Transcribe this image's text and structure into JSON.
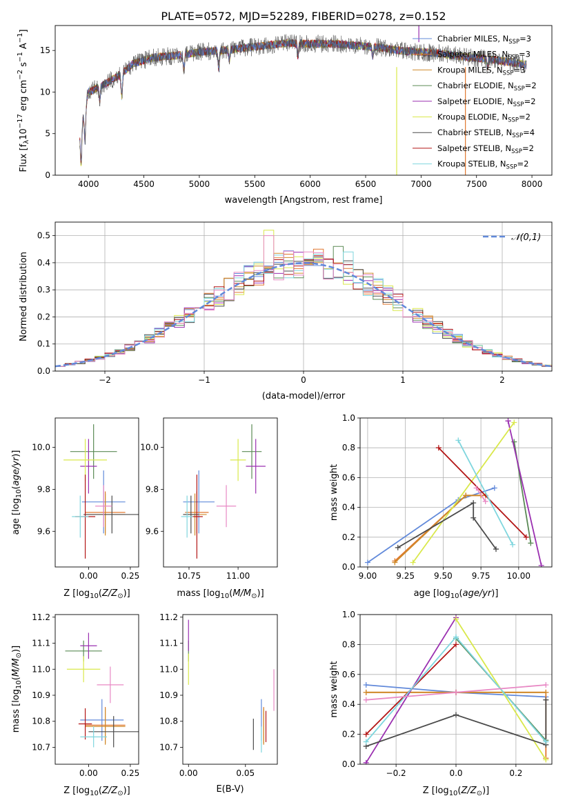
{
  "title": "PLATE=0572, MJD=52289, FIBERID=0278, z=0.152",
  "colors": [
    "#6189da",
    "#e0772f",
    "#cf8a2a",
    "#5a8a55",
    "#9a2fb0",
    "#d9e84a",
    "#4a4a4a",
    "#b21414",
    "#7fd6de",
    "#e888c4"
  ],
  "chart_data": [
    {
      "id": "spectrum",
      "type": "line",
      "xlabel": "wavelength [Angstrom, rest frame]",
      "ylabel": "Flux [f_λ 10^-17 erg cm^-2 s^-1 A^-1]",
      "xlim": [
        3700,
        8180
      ],
      "ylim": [
        0,
        18
      ],
      "xticks": [
        4000,
        4500,
        5000,
        5500,
        6000,
        6500,
        7000,
        7500,
        8000
      ],
      "yticks": [
        0,
        5,
        10,
        15
      ],
      "legend_position": "upper right",
      "series": [
        {
          "name": "Chabrier MILES, N_SSP=3",
          "color": "#6189da"
        },
        {
          "name": "Salpeter MILES, N_SSP=3",
          "color": "#e0772f"
        },
        {
          "name": "Kroupa MILES, N_SSP=3",
          "color": "#cf8a2a"
        },
        {
          "name": "Chabrier ELODIE, N_SSP=2",
          "color": "#5a8a55"
        },
        {
          "name": "Salpeter ELODIE, N_SSP=2",
          "color": "#9a2fb0"
        },
        {
          "name": "Kroupa ELODIE, N_SSP=2",
          "color": "#d9e84a"
        },
        {
          "name": "Chabrier STELIB, N_SSP=4",
          "color": "#4a4a4a"
        },
        {
          "name": "Salpeter STELIB, N_SSP=2",
          "color": "#b21414"
        },
        {
          "name": "Kroupa STELIB, N_SSP=2",
          "color": "#7fd6de"
        }
      ],
      "continuum": {
        "x": [
          3920,
          3960,
          4000,
          4100,
          4200,
          4300,
          4400,
          4600,
          4800,
          5000,
          5200,
          5400,
          5600,
          5800,
          6000,
          6200,
          6400,
          6600,
          6800,
          7000,
          7200,
          7400,
          7600,
          7800,
          7950
        ],
        "y": [
          5.0,
          7.5,
          10.0,
          10.6,
          11.4,
          12.2,
          13.4,
          14.2,
          14.4,
          14.8,
          15.0,
          15.3,
          15.6,
          15.9,
          15.8,
          15.8,
          15.6,
          15.4,
          15.0,
          14.8,
          14.6,
          14.2,
          14.0,
          13.6,
          13.3
        ]
      },
      "features": [
        {
          "wavelength": 6780,
          "color": "#d9e84a",
          "from": 13.0,
          "to": 0
        },
        {
          "wavelength": 7400,
          "color": "#e0772f",
          "from": 13.0,
          "to": 0
        },
        {
          "wavelength": 6980,
          "color": "#9a2fb0",
          "from": 16.0,
          "to": 18.0
        }
      ]
    },
    {
      "id": "residuals",
      "type": "histogram",
      "xlabel": "(data-model)/error",
      "ylabel": "Normed distribution",
      "xlim": [
        -2.5,
        2.5
      ],
      "ylim": [
        0,
        0.55
      ],
      "xticks": [
        -2,
        -1,
        0,
        1,
        2
      ],
      "yticks": [
        0.0,
        0.1,
        0.2,
        0.3,
        0.4,
        0.5
      ],
      "bin_width": 0.1,
      "reference_curve": {
        "name": "𝒩(0,1)",
        "color": "#6189da",
        "style": "dashed"
      },
      "outlier_bins": [
        {
          "center": -0.35,
          "value": 0.52,
          "color": "#d9e84a"
        },
        {
          "center": -0.35,
          "value": 0.5,
          "color": "#e888c4"
        },
        {
          "center": 0.15,
          "value": 0.45,
          "color": "#e0772f"
        },
        {
          "center": 0.35,
          "value": 0.46,
          "color": "#5a8a55"
        },
        {
          "center": 0.45,
          "value": 0.44,
          "color": "#7fd6de"
        },
        {
          "center": 0.05,
          "value": 0.44,
          "color": "#e888c4"
        }
      ]
    },
    {
      "id": "age_vs_Z",
      "type": "scatter",
      "xlabel": "Z [log10(Z/Z⊙)]",
      "ylabel": "age [log10(age/yr)]",
      "xlim": [
        -0.2,
        0.3
      ],
      "ylim": [
        9.43,
        10.14
      ],
      "xticks": [
        0.0,
        0.25
      ],
      "yticks": [
        9.6,
        9.8,
        10.0
      ],
      "points": [
        {
          "x": 0.09,
          "y": 9.74,
          "xerr": 0.13,
          "yerr": 0.15,
          "color": "#6189da"
        },
        {
          "x": 0.1,
          "y": 9.69,
          "xerr": 0.12,
          "yerr": 0.1,
          "color": "#e0772f"
        },
        {
          "x": 0.1,
          "y": 9.68,
          "xerr": 0.12,
          "yerr": 0.1,
          "color": "#cf8a2a"
        },
        {
          "x": 0.03,
          "y": 9.98,
          "xerr": 0.14,
          "yerr": 0.13,
          "color": "#5a8a55"
        },
        {
          "x": 0.0,
          "y": 9.91,
          "xerr": 0.05,
          "yerr": 0.13,
          "color": "#9a2fb0"
        },
        {
          "x": -0.02,
          "y": 9.94,
          "xerr": 0.13,
          "yerr": 0.1,
          "color": "#d9e84a"
        },
        {
          "x": 0.14,
          "y": 9.68,
          "xerr": 0.17,
          "yerr": 0.09,
          "color": "#4a4a4a"
        },
        {
          "x": -0.02,
          "y": 9.67,
          "xerr": 0.06,
          "yerr": 0.2,
          "color": "#b21414"
        },
        {
          "x": -0.05,
          "y": 9.67,
          "xerr": 0.05,
          "yerr": 0.1,
          "color": "#7fd6de"
        },
        {
          "x": 0.09,
          "y": 9.72,
          "xerr": 0.05,
          "yerr": 0.1,
          "color": "#e888c4"
        }
      ]
    },
    {
      "id": "age_vs_mass",
      "type": "scatter",
      "xlabel": "mass [log10(M/M⊙)]",
      "ylabel": "",
      "xlim": [
        10.62,
        11.2
      ],
      "ylim": [
        9.43,
        10.14
      ],
      "xticks": [
        10.75,
        11.0
      ],
      "yticks": [
        9.6,
        9.8,
        10.0
      ],
      "points": [
        {
          "x": 10.8,
          "y": 9.74,
          "xerr": 0.08,
          "yerr": 0.15,
          "color": "#6189da"
        },
        {
          "x": 10.79,
          "y": 9.69,
          "xerr": 0.06,
          "yerr": 0.1,
          "color": "#e0772f"
        },
        {
          "x": 10.78,
          "y": 9.68,
          "xerr": 0.06,
          "yerr": 0.1,
          "color": "#cf8a2a"
        },
        {
          "x": 11.07,
          "y": 9.98,
          "xerr": 0.05,
          "yerr": 0.13,
          "color": "#5a8a55"
        },
        {
          "x": 11.09,
          "y": 9.91,
          "xerr": 0.05,
          "yerr": 0.13,
          "color": "#9a2fb0"
        },
        {
          "x": 11.0,
          "y": 9.94,
          "xerr": 0.04,
          "yerr": 0.1,
          "color": "#d9e84a"
        },
        {
          "x": 10.76,
          "y": 9.68,
          "xerr": 0.04,
          "yerr": 0.09,
          "color": "#4a4a4a"
        },
        {
          "x": 10.79,
          "y": 9.67,
          "xerr": 0.03,
          "yerr": 0.2,
          "color": "#b21414"
        },
        {
          "x": 10.74,
          "y": 9.67,
          "xerr": 0.03,
          "yerr": 0.1,
          "color": "#7fd6de"
        },
        {
          "x": 10.94,
          "y": 9.72,
          "xerr": 0.05,
          "yerr": 0.1,
          "color": "#e888c4"
        }
      ]
    },
    {
      "id": "weight_vs_age",
      "type": "line",
      "xlabel": "age [log10(age/yr)]",
      "ylabel": "mass weight",
      "xlim": [
        8.95,
        10.22
      ],
      "ylim": [
        0,
        1.0
      ],
      "xticks": [
        9.0,
        9.25,
        9.5,
        9.75,
        10.0
      ],
      "yticks": [
        0.0,
        0.2,
        0.4,
        0.6,
        0.8,
        1.0
      ],
      "grid": true,
      "series": [
        {
          "color": "#6189da",
          "x": [
            9.0,
            9.6,
            9.84
          ],
          "y": [
            0.03,
            0.45,
            0.53
          ]
        },
        {
          "color": "#e0772f",
          "x": [
            9.18,
            9.65,
            9.78
          ],
          "y": [
            0.04,
            0.48,
            0.48
          ]
        },
        {
          "color": "#cf8a2a",
          "x": [
            9.18,
            9.65,
            9.75
          ],
          "y": [
            0.03,
            0.48,
            0.48
          ]
        },
        {
          "color": "#5a8a55",
          "x": [
            9.97,
            10.08
          ],
          "y": [
            0.84,
            0.16
          ]
        },
        {
          "color": "#9a2fb0",
          "x": [
            10.15,
            9.93
          ],
          "y": [
            0.01,
            0.98
          ]
        },
        {
          "color": "#d9e84a",
          "x": [
            9.3,
            9.97
          ],
          "y": [
            0.03,
            0.97
          ]
        },
        {
          "color": "#4a4a4a",
          "x": [
            9.2,
            9.7,
            9.7,
            9.85
          ],
          "y": [
            0.13,
            0.43,
            0.33,
            0.12
          ]
        },
        {
          "color": "#b21414",
          "x": [
            9.47,
            10.05
          ],
          "y": [
            0.8,
            0.2
          ]
        },
        {
          "color": "#7fd6de",
          "x": [
            9.6,
            9.96
          ],
          "y": [
            0.85,
            0.15
          ]
        },
        {
          "color": "#e888c4",
          "x": [
            9.72,
            9.78
          ],
          "y": [
            0.53,
            0.44
          ]
        }
      ]
    },
    {
      "id": "mass_vs_Z",
      "type": "scatter",
      "xlabel": "Z [log10(Z/Z⊙)]",
      "ylabel": "mass [log10(M/M⊙)]",
      "xlim": [
        -0.2,
        0.3
      ],
      "ylim": [
        10.635,
        11.21
      ],
      "xticks": [
        0.0,
        0.25
      ],
      "yticks": [
        10.7,
        10.8,
        10.9,
        11.0,
        11.1,
        11.2
      ],
      "points": [
        {
          "x": 0.08,
          "y": 10.805,
          "xerr": 0.13,
          "yerr": 0.08,
          "color": "#6189da"
        },
        {
          "x": 0.1,
          "y": 10.785,
          "xerr": 0.12,
          "yerr": 0.07,
          "color": "#e0772f"
        },
        {
          "x": 0.1,
          "y": 10.78,
          "xerr": 0.12,
          "yerr": 0.07,
          "color": "#cf8a2a"
        },
        {
          "x": -0.03,
          "y": 11.07,
          "xerr": 0.11,
          "yerr": 0.04,
          "color": "#5a8a55"
        },
        {
          "x": 0.0,
          "y": 11.09,
          "xerr": 0.05,
          "yerr": 0.05,
          "color": "#9a2fb0"
        },
        {
          "x": -0.03,
          "y": 11.0,
          "xerr": 0.1,
          "yerr": 0.05,
          "color": "#d9e84a"
        },
        {
          "x": 0.15,
          "y": 10.76,
          "xerr": 0.15,
          "yerr": 0.06,
          "color": "#4a4a4a"
        },
        {
          "x": -0.02,
          "y": 10.79,
          "xerr": 0.04,
          "yerr": 0.06,
          "color": "#b21414"
        },
        {
          "x": 0.03,
          "y": 10.74,
          "xerr": 0.08,
          "yerr": 0.04,
          "color": "#7fd6de"
        },
        {
          "x": 0.13,
          "y": 10.94,
          "xerr": 0.08,
          "yerr": 0.07,
          "color": "#e888c4"
        }
      ]
    },
    {
      "id": "mass_vs_ebv",
      "type": "scatter",
      "xlabel": "E(B-V)",
      "ylabel": "",
      "xlim": [
        -0.005,
        0.078
      ],
      "ylim": [
        10.635,
        11.21
      ],
      "xticks": [
        0.0,
        0.05
      ],
      "yticks": [
        10.7,
        10.8,
        10.9,
        11.0,
        11.1,
        11.2
      ],
      "points": [
        {
          "x": 0.064,
          "y": 10.805,
          "yerr": 0.08,
          "color": "#6189da"
        },
        {
          "x": 0.066,
          "y": 10.785,
          "yerr": 0.07,
          "color": "#e0772f"
        },
        {
          "x": 0.066,
          "y": 10.78,
          "yerr": 0.07,
          "color": "#cf8a2a"
        },
        {
          "x": 0.0,
          "y": 11.07,
          "yerr": 0.04,
          "color": "#5a8a55"
        },
        {
          "x": 0.0,
          "y": 11.13,
          "yerr": 0.06,
          "color": "#9a2fb0"
        },
        {
          "x": 0.0,
          "y": 11.0,
          "yerr": 0.06,
          "color": "#d9e84a"
        },
        {
          "x": 0.057,
          "y": 10.75,
          "yerr": 0.06,
          "color": "#4a4a4a"
        },
        {
          "x": 0.068,
          "y": 10.78,
          "yerr": 0.06,
          "color": "#b21414"
        },
        {
          "x": 0.064,
          "y": 10.73,
          "yerr": 0.05,
          "color": "#7fd6de"
        },
        {
          "x": 0.075,
          "y": 10.92,
          "yerr": 0.08,
          "color": "#e888c4"
        }
      ]
    },
    {
      "id": "weight_vs_Z",
      "type": "line",
      "xlabel": "Z [log10(Z/Z⊙)]",
      "ylabel": "mass weight",
      "xlim": [
        -0.32,
        0.32
      ],
      "ylim": [
        0,
        1.0
      ],
      "xticks": [
        -0.2,
        0.0,
        0.2
      ],
      "yticks": [
        0.0,
        0.2,
        0.4,
        0.6,
        0.8,
        1.0
      ],
      "grid": true,
      "series": [
        {
          "color": "#6189da",
          "x": [
            -0.3,
            0.0,
            0.3
          ],
          "y": [
            0.53,
            0.48,
            0.45
          ]
        },
        {
          "color": "#e0772f",
          "x": [
            -0.3,
            0.0,
            0.3,
            0.3
          ],
          "y": [
            0.48,
            0.48,
            0.48,
            0.04
          ]
        },
        {
          "color": "#cf8a2a",
          "x": [
            -0.3,
            0.0,
            0.3
          ],
          "y": [
            0.48,
            0.48,
            0.48
          ]
        },
        {
          "color": "#5a8a55",
          "x": [
            0.0,
            0.3
          ],
          "y": [
            0.84,
            0.16
          ]
        },
        {
          "color": "#9a2fb0",
          "x": [
            -0.3,
            0.0
          ],
          "y": [
            0.01,
            0.98
          ]
        },
        {
          "color": "#d9e84a",
          "x": [
            0.0,
            0.3
          ],
          "y": [
            0.97,
            0.03
          ]
        },
        {
          "color": "#4a4a4a",
          "x": [
            -0.3,
            0.0,
            0.3,
            0.3
          ],
          "y": [
            0.12,
            0.33,
            0.13,
            0.43
          ]
        },
        {
          "color": "#b21414",
          "x": [
            -0.3,
            0.0
          ],
          "y": [
            0.2,
            0.8
          ]
        },
        {
          "color": "#7fd6de",
          "x": [
            -0.3,
            0.0,
            0.3
          ],
          "y": [
            0.15,
            0.85,
            0.15
          ]
        },
        {
          "color": "#e888c4",
          "x": [
            -0.3,
            0.0,
            0.3
          ],
          "y": [
            0.43,
            0.48,
            0.53
          ]
        }
      ]
    }
  ]
}
